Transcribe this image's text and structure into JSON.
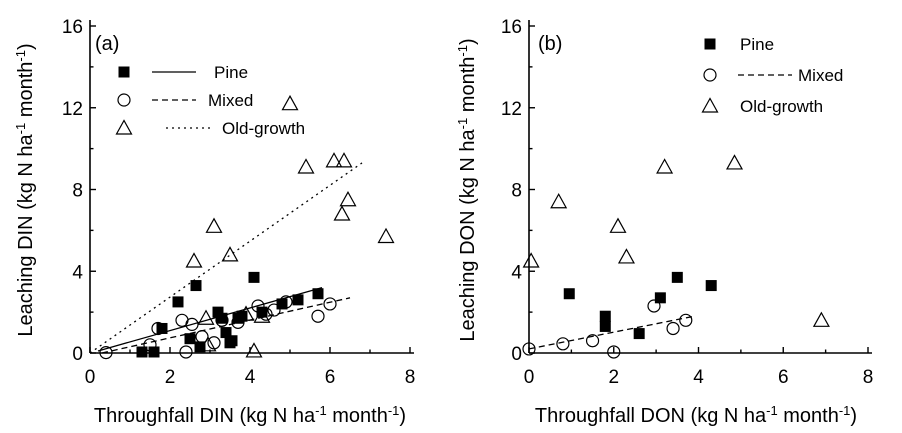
{
  "chart_data": [
    {
      "type": "scatter",
      "panel_label": "(a)",
      "xlabel": "Throughfall DIN (kg N ha-1 month-1)",
      "xlabel_parts": {
        "pre": "Throughfall DIN (kg N ha",
        "sup1": "-1",
        "mid": " month",
        "sup2": "-1",
        "post": ")"
      },
      "ylabel": "Leaching DIN (kg N ha-1 month-1)",
      "ylabel_parts": {
        "pre": "Leaching DIN (kg N ha",
        "sup1": "-1",
        "mid": " month",
        "sup2": "-1",
        "post": ")"
      },
      "xlim": [
        0,
        8
      ],
      "ylim": [
        0,
        16
      ],
      "xticks": [
        "0",
        "2",
        "4",
        "6",
        "8"
      ],
      "yticks": [
        "0",
        "4",
        "8",
        "12",
        "16"
      ],
      "legend_placement": "top-left",
      "series": [
        {
          "name": "Pine",
          "marker": "square-filled",
          "points": [
            [
              1.3,
              0.05
            ],
            [
              1.6,
              0.05
            ],
            [
              1.8,
              1.2
            ],
            [
              2.2,
              2.5
            ],
            [
              2.5,
              0.7
            ],
            [
              2.65,
              3.3
            ],
            [
              2.75,
              0.3
            ],
            [
              3.2,
              2.0
            ],
            [
              3.3,
              1.7
            ],
            [
              3.4,
              1.0
            ],
            [
              3.5,
              0.5
            ],
            [
              3.55,
              0.6
            ],
            [
              3.7,
              1.7
            ],
            [
              3.8,
              1.8
            ],
            [
              4.1,
              3.7
            ],
            [
              4.3,
              2.0
            ],
            [
              4.8,
              2.4
            ],
            [
              5.2,
              2.6
            ],
            [
              5.7,
              2.9
            ]
          ]
        },
        {
          "name": "Mixed",
          "marker": "circle-open",
          "points": [
            [
              0.4,
              0.02
            ],
            [
              1.5,
              0.4
            ],
            [
              1.7,
              1.2
            ],
            [
              2.3,
              1.6
            ],
            [
              2.4,
              0.05
            ],
            [
              2.55,
              1.4
            ],
            [
              2.8,
              0.8
            ],
            [
              3.1,
              0.5
            ],
            [
              3.3,
              1.6
            ],
            [
              3.7,
              1.5
            ],
            [
              4.2,
              2.3
            ],
            [
              4.4,
              1.9
            ],
            [
              4.6,
              2.1
            ],
            [
              4.9,
              2.5
            ],
            [
              5.7,
              1.8
            ],
            [
              6.0,
              2.4
            ]
          ]
        },
        {
          "name": "Old-growth",
          "marker": "triangle-open",
          "points": [
            [
              2.6,
              4.5
            ],
            [
              2.9,
              1.7
            ],
            [
              2.95,
              0.4
            ],
            [
              3.1,
              6.2
            ],
            [
              3.5,
              4.8
            ],
            [
              3.9,
              1.9
            ],
            [
              4.1,
              0.1
            ],
            [
              4.3,
              1.8
            ],
            [
              5.0,
              12.2
            ],
            [
              5.4,
              9.1
            ],
            [
              6.1,
              9.4
            ],
            [
              6.3,
              6.8
            ],
            [
              6.35,
              9.4
            ],
            [
              6.45,
              7.5
            ],
            [
              7.4,
              5.7
            ]
          ]
        }
      ],
      "fit_lines": [
        {
          "series": "Pine",
          "style": "solid",
          "x": [
            0.2,
            5.8
          ],
          "y": [
            0.1,
            3.2
          ]
        },
        {
          "series": "Mixed",
          "style": "dashed",
          "x": [
            0.3,
            6.5
          ],
          "y": [
            0.0,
            2.7
          ]
        },
        {
          "series": "Old-growth",
          "style": "dotted",
          "x": [
            0,
            6.8
          ],
          "y": [
            0.0,
            9.3
          ]
        }
      ]
    },
    {
      "type": "scatter",
      "panel_label": "(b)",
      "xlabel": "Throughfall DON (kg N ha-1 month-1)",
      "xlabel_parts": {
        "pre": "Throughfall DON (kg N ha",
        "sup1": "-1",
        "mid": " month",
        "sup2": "-1",
        "post": ")"
      },
      "ylabel": "Leaching DON (kg N ha-1 month-1)",
      "ylabel_parts": {
        "pre": "Leaching DON (kg N ha",
        "sup1": "-1",
        "mid": " month",
        "sup2": "-1",
        "post": ")"
      },
      "xlim": [
        0,
        8
      ],
      "ylim": [
        0,
        16
      ],
      "xticks": [
        "0",
        "2",
        "4",
        "6",
        "8"
      ],
      "yticks": [
        "0",
        "4",
        "8",
        "12",
        "16"
      ],
      "legend_placement": "top-center",
      "series": [
        {
          "name": "Pine",
          "marker": "square-filled",
          "points": [
            [
              0.95,
              2.9
            ],
            [
              1.8,
              1.8
            ],
            [
              1.8,
              1.3
            ],
            [
              2.6,
              0.95
            ],
            [
              3.1,
              2.7
            ],
            [
              3.5,
              3.7
            ],
            [
              4.3,
              3.3
            ]
          ]
        },
        {
          "name": "Mixed",
          "marker": "circle-open",
          "points": [
            [
              0.0,
              0.2
            ],
            [
              0.8,
              0.45
            ],
            [
              1.5,
              0.6
            ],
            [
              2.0,
              0.05
            ],
            [
              2.95,
              2.3
            ],
            [
              3.4,
              1.2
            ],
            [
              3.7,
              1.6
            ]
          ]
        },
        {
          "name": "Old-growth",
          "marker": "triangle-open",
          "points": [
            [
              0.05,
              4.5
            ],
            [
              0.7,
              7.4
            ],
            [
              2.1,
              6.2
            ],
            [
              2.3,
              4.7
            ],
            [
              3.2,
              9.1
            ],
            [
              4.85,
              9.3
            ],
            [
              6.9,
              1.6
            ]
          ]
        }
      ],
      "fit_lines": [
        {
          "series": "Mixed",
          "style": "dashed",
          "x": [
            0.0,
            3.9
          ],
          "y": [
            0.2,
            1.8
          ]
        }
      ]
    }
  ]
}
